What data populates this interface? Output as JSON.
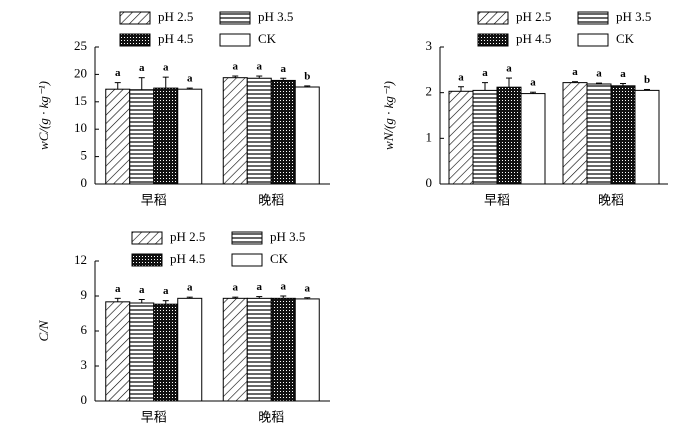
{
  "chart_data": [
    {
      "type": "bar",
      "ylabel": "wC/(g · kg⁻¹)",
      "categories": [
        "早稻",
        "晚稻"
      ],
      "ylim": [
        0,
        25
      ],
      "yticks": [
        0,
        5,
        10,
        15,
        20,
        25
      ],
      "series": [
        {
          "name": "pH 2.5",
          "pattern": "diagonal",
          "values": [
            17.3,
            19.4
          ],
          "errors": [
            1.2,
            0.3
          ],
          "letters": [
            "a",
            "a"
          ]
        },
        {
          "name": "pH 3.5",
          "pattern": "horizontal",
          "values": [
            17.2,
            19.3
          ],
          "errors": [
            2.2,
            0.4
          ],
          "letters": [
            "a",
            "a"
          ]
        },
        {
          "name": "pH 4.5",
          "pattern": "grid",
          "values": [
            17.5,
            18.9
          ],
          "errors": [
            2.0,
            0.4
          ],
          "letters": [
            "a",
            "a"
          ]
        },
        {
          "name": "CK",
          "pattern": "none",
          "values": [
            17.3,
            17.7
          ],
          "errors": [
            0.2,
            0.2
          ],
          "letters": [
            "a",
            "b"
          ]
        }
      ]
    },
    {
      "type": "bar",
      "ylabel": "wN/(g · kg⁻¹)",
      "categories": [
        "早稻",
        "晚稻"
      ],
      "ylim": [
        0,
        3
      ],
      "yticks": [
        0,
        1,
        2,
        3
      ],
      "series": [
        {
          "name": "pH 2.5",
          "pattern": "diagonal",
          "values": [
            2.03,
            2.22
          ],
          "errors": [
            0.1,
            0.02
          ],
          "letters": [
            "a",
            "a"
          ]
        },
        {
          "name": "pH 3.5",
          "pattern": "horizontal",
          "values": [
            2.05,
            2.19
          ],
          "errors": [
            0.17,
            0.02
          ],
          "letters": [
            "a",
            "a"
          ]
        },
        {
          "name": "pH 4.5",
          "pattern": "grid",
          "values": [
            2.12,
            2.15
          ],
          "errors": [
            0.2,
            0.05
          ],
          "letters": [
            "a",
            "a"
          ]
        },
        {
          "name": "CK",
          "pattern": "none",
          "values": [
            1.98,
            2.05
          ],
          "errors": [
            0.03,
            0.02
          ],
          "letters": [
            "a",
            "b"
          ]
        }
      ]
    },
    {
      "type": "bar",
      "ylabel": "C/N",
      "categories": [
        "早稻",
        "晚稻"
      ],
      "ylim": [
        0,
        12
      ],
      "yticks": [
        0,
        3,
        6,
        9,
        12
      ],
      "series": [
        {
          "name": "pH 2.5",
          "pattern": "diagonal",
          "values": [
            8.5,
            8.8
          ],
          "errors": [
            0.3,
            0.1
          ],
          "letters": [
            "a",
            "a"
          ]
        },
        {
          "name": "pH 3.5",
          "pattern": "horizontal",
          "values": [
            8.4,
            8.8
          ],
          "errors": [
            0.3,
            0.15
          ],
          "letters": [
            "a",
            "a"
          ]
        },
        {
          "name": "pH 4.5",
          "pattern": "grid",
          "values": [
            8.3,
            8.8
          ],
          "errors": [
            0.3,
            0.2
          ],
          "letters": [
            "a",
            "a"
          ]
        },
        {
          "name": "CK",
          "pattern": "none",
          "values": [
            8.8,
            8.75
          ],
          "errors": [
            0.1,
            0.1
          ],
          "letters": [
            "a",
            "a"
          ]
        }
      ]
    }
  ]
}
